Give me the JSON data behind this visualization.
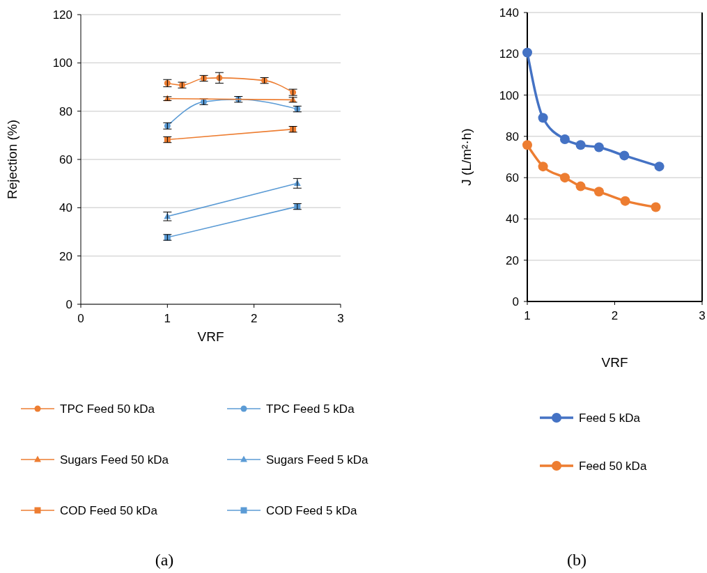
{
  "chart_data": [
    {
      "type": "line",
      "xlabel": "VRF",
      "ylabel": "Rejection (%)",
      "xlim": [
        0,
        3
      ],
      "xticks": [
        0,
        1,
        2,
        3
      ],
      "ylim": [
        0,
        120
      ],
      "yticks": [
        0,
        20,
        40,
        60,
        80,
        100,
        120
      ],
      "grid": "y",
      "legend": "bottom",
      "annotations": [
        "(a)"
      ],
      "series": [
        {
          "name": "TPC Feed 50 kDa",
          "color": "#ed7d31",
          "marker": "circle",
          "x": [
            1.0,
            1.17,
            1.42,
            1.6,
            2.12,
            2.45
          ],
          "values": [
            91.6,
            90.8,
            93.6,
            93.8,
            92.7,
            87.8
          ],
          "errors": [
            1.5,
            1.2,
            1.2,
            2.2,
            1.2,
            1.3
          ]
        },
        {
          "name": "TPC Feed 5 kDa",
          "color": "#5b9bd5",
          "marker": "circle",
          "x": [
            1.0,
            1.42,
            1.82,
            2.5
          ],
          "values": [
            73.9,
            83.9,
            84.9,
            80.9
          ],
          "errors": [
            1.3,
            1.2,
            1.2,
            1.2
          ]
        },
        {
          "name": "Sugars Feed 50 kDa",
          "color": "#ed7d31",
          "marker": "triangle",
          "x": [
            1.0,
            2.45
          ],
          "values": [
            85.2,
            84.7
          ],
          "errors": [
            0.8,
            1
          ]
        },
        {
          "name": "Sugars Feed 5 kDa",
          "color": "#5b9bd5",
          "marker": "triangle",
          "x": [
            1.0,
            2.5
          ],
          "values": [
            36.4,
            50.1
          ],
          "errors": [
            1.8,
            2
          ]
        },
        {
          "name": "COD Feed 50 kDa",
          "color": "#ed7d31",
          "marker": "square",
          "x": [
            1.0,
            2.45
          ],
          "values": [
            68.2,
            72.5
          ],
          "errors": [
            1.2,
            1.2
          ]
        },
        {
          "name": "COD Feed 5 kDa",
          "color": "#5b9bd5",
          "marker": "square",
          "x": [
            1.0,
            2.5
          ],
          "values": [
            27.7,
            40.5
          ],
          "errors": [
            1.2,
            1.2
          ]
        }
      ]
    },
    {
      "type": "line",
      "xlabel": "VRF",
      "ylabel": "J (L/m²·h)",
      "xlim": [
        1,
        3
      ],
      "xticks": [
        1,
        2,
        3
      ],
      "ylim": [
        0,
        140
      ],
      "yticks": [
        0,
        20,
        40,
        60,
        80,
        100,
        120,
        140
      ],
      "grid": "y",
      "legend": "bottom",
      "annotations": [
        "(b)"
      ],
      "marker": "circle",
      "series": [
        {
          "name": "Feed 5 kDa",
          "color": "#4472c4",
          "x": [
            1.0,
            1.18,
            1.43,
            1.61,
            1.82,
            2.11,
            2.51
          ],
          "values": [
            120.6,
            89.0,
            78.6,
            75.8,
            74.7,
            70.7,
            65.4
          ]
        },
        {
          "name": "Feed 50 kDa",
          "color": "#ed7d31",
          "x": [
            1.0,
            1.18,
            1.43,
            1.61,
            1.82,
            2.12,
            2.47
          ],
          "values": [
            75.8,
            65.4,
            60.0,
            55.8,
            53.2,
            48.7,
            45.7
          ]
        }
      ]
    }
  ]
}
